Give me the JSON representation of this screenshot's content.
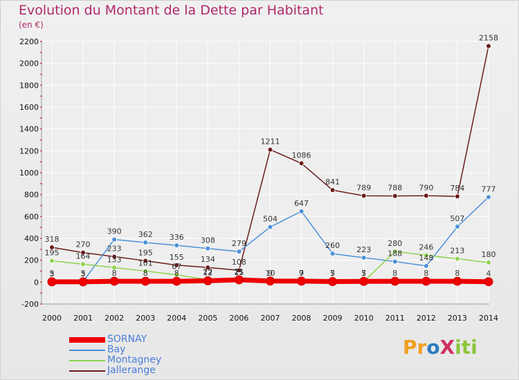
{
  "chart_data": {
    "type": "line",
    "title": "Evolution du Montant de la Dette par Habitant",
    "subtitle": "(en €)",
    "categories": [
      "2000",
      "2001",
      "2002",
      "2003",
      "2004",
      "2005",
      "2006",
      "2007",
      "2008",
      "2009",
      "2010",
      "2011",
      "2012",
      "2013",
      "2014"
    ],
    "ylim": [
      -200,
      2200
    ],
    "yticks": [
      -200,
      0,
      200,
      400,
      600,
      800,
      1000,
      1200,
      1400,
      1600,
      1800,
      2000,
      2200
    ],
    "grid": true,
    "legend_position": "bottom-left",
    "series": [
      {
        "name": "SORNAY",
        "color": "#ee0000",
        "values": [
          3,
          3,
          8,
          8,
          8,
          12,
          21,
          10,
          9,
          5,
          7,
          8,
          8,
          8,
          4
        ],
        "labels": [
          "3",
          "3",
          "8",
          "8",
          "8",
          "12",
          "21",
          "10",
          "9",
          "5",
          "7",
          "8",
          "8",
          "8",
          "4"
        ]
      },
      {
        "name": "Bay",
        "color": "#4a90d9",
        "values": [
          5,
          5,
          390,
          362,
          336,
          308,
          279,
          504,
          647,
          260,
          223,
          188,
          148,
          507,
          777
        ],
        "labels": [
          "5",
          "5",
          "390",
          "362",
          "336",
          "308",
          "279",
          "504",
          "647",
          "260",
          "223",
          "188",
          "148",
          "507",
          "777"
        ]
      },
      {
        "name": "Montagney",
        "color": "#8cd44a",
        "values": [
          195,
          164,
          133,
          101,
          67,
          22,
          15,
          9,
          7,
          7,
          5,
          280,
          246,
          213,
          180
        ],
        "labels": [
          "195",
          "164",
          "133",
          "101",
          "67",
          "22",
          "15",
          "9",
          "7",
          "7",
          "5",
          "280",
          "246",
          "213",
          "180"
        ]
      },
      {
        "name": "Jallerange",
        "color": "#6b1a1a",
        "values": [
          318,
          270,
          233,
          195,
          155,
          134,
          108,
          1211,
          1086,
          841,
          789,
          788,
          790,
          784,
          2158
        ],
        "labels": [
          "318",
          "270",
          "233",
          "195",
          "155",
          "134",
          "108",
          "1211",
          "1086",
          "841",
          "789",
          "788",
          "790",
          "784",
          "2158"
        ]
      }
    ]
  },
  "logo": {
    "text": "ProXiti",
    "letters": [
      "P",
      "r",
      "o",
      "X",
      "i",
      "t",
      "i"
    ],
    "colors": [
      "#f0a020",
      "#f0a020",
      "#2a7ac0",
      "#d03060",
      "#8cc43a",
      "#8cc43a",
      "#8cc43a"
    ]
  }
}
